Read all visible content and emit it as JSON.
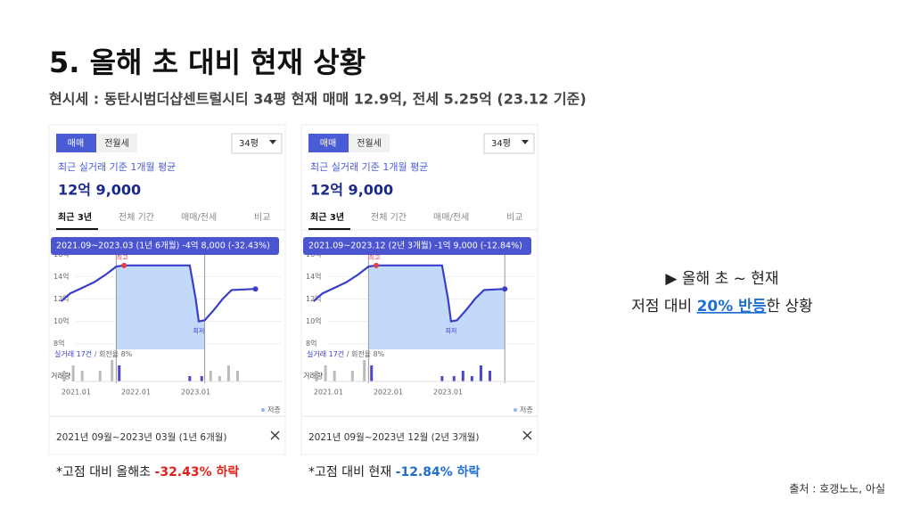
{
  "header": {
    "title": "5. 올해 초 대비 현재 상황",
    "subtitle": "현시세 : 동탄시범더샵센트럴시티 34평 현재 매매 12.9억, 전세 5.25억 (23.12 기준)"
  },
  "panels": [
    {
      "tab_sale": "매매",
      "tab_rent": "전월세",
      "size": "34평",
      "avg_label": "최근 실거래 기준 1개월 평균",
      "avg_price": "12억 9,000",
      "period_tabs": [
        "최근 3년",
        "전체 기간",
        "매매/전세",
        "비교"
      ],
      "tooltip": "2021.09~2023.03 (1년 6개월)  -4억 8,000 (-32.43%)",
      "range": [
        2021.67,
        2023.15
      ],
      "ylim": [
        7.5,
        16.5
      ],
      "yticks": [
        {
          "value": 8,
          "label": "8억"
        },
        {
          "value": 10,
          "label": "10억"
        },
        {
          "value": 12,
          "label": "12억"
        },
        {
          "value": 14,
          "label": "14억"
        },
        {
          "value": 16,
          "label": "16억"
        }
      ],
      "xlim": [
        2020.65,
        2024.2
      ],
      "xticks": [
        {
          "value": 2021,
          "label": "2021.01"
        },
        {
          "value": 2022,
          "label": "2022.01"
        },
        {
          "value": 2023,
          "label": "2023.01"
        }
      ],
      "price": {
        "x": [
          2020.75,
          2020.9,
          2021.1,
          2021.3,
          2021.5,
          2021.67,
          2021.8,
          2022.9,
          2023.0,
          2023.05,
          2023.15,
          2023.3,
          2023.45,
          2023.6,
          2024.0
        ],
        "values": [
          11.8,
          12.5,
          13.0,
          13.5,
          14.2,
          14.9,
          15.0,
          15.0,
          12.0,
          10.0,
          10.1,
          11.0,
          12.0,
          12.8,
          12.9
        ]
      },
      "high_label": "최고",
      "low_label": "최저",
      "deals": "실거래 17건",
      "turnover": " / 회전율 8%",
      "volume_label": "거래량",
      "volume": {
        "x": [
          2020.8,
          2020.95,
          2021.1,
          2021.4,
          2021.6,
          2021.72,
          2022.9,
          2023.1,
          2023.25,
          2023.4,
          2023.55,
          2023.7
        ],
        "values": [
          2,
          3,
          2,
          2,
          4,
          3,
          1,
          1,
          2,
          1,
          3,
          2
        ]
      },
      "legend": "저층",
      "period": "2021년 09월~2023년 03월 (1년 6개월)",
      "caption": "*고점 대비 올해초 ",
      "caption_highlight": "-32.43% 하락",
      "highlight_color": "#e0211a"
    },
    {
      "tab_sale": "매매",
      "tab_rent": "전월세",
      "size": "34평",
      "avg_label": "최근 실거래 기준 1개월 평균",
      "avg_price": "12억 9,000",
      "period_tabs": [
        "최근 3년",
        "전체 기간",
        "매매/전세",
        "비교"
      ],
      "tooltip": "2021.09~2023.12 (2년 3개월)  -1억 9,000 (-12.84%)",
      "range": [
        2021.67,
        2023.95
      ],
      "ylim": [
        7.5,
        16.5
      ],
      "yticks": [
        {
          "value": 8,
          "label": "8억"
        },
        {
          "value": 10,
          "label": "10억"
        },
        {
          "value": 12,
          "label": "12억"
        },
        {
          "value": 14,
          "label": "14억"
        },
        {
          "value": 16,
          "label": "16억"
        }
      ],
      "xlim": [
        2020.65,
        2024.2
      ],
      "xticks": [
        {
          "value": 2021,
          "label": "2021.01"
        },
        {
          "value": 2022,
          "label": "2022.01"
        },
        {
          "value": 2023,
          "label": "2023.01"
        }
      ],
      "price": {
        "x": [
          2020.75,
          2020.9,
          2021.1,
          2021.3,
          2021.5,
          2021.67,
          2021.8,
          2022.9,
          2023.0,
          2023.05,
          2023.15,
          2023.3,
          2023.45,
          2023.6,
          2023.95
        ],
        "values": [
          11.8,
          12.5,
          13.0,
          13.5,
          14.2,
          14.9,
          15.0,
          15.0,
          12.0,
          10.0,
          10.1,
          11.0,
          12.0,
          12.8,
          12.9
        ]
      },
      "high_label": "최고",
      "low_label": "최저",
      "deals": "실거래 17건",
      "turnover": " / 회전율 8%",
      "volume_label": "거래량",
      "volume": {
        "x": [
          2020.8,
          2020.95,
          2021.1,
          2021.4,
          2021.6,
          2021.72,
          2022.9,
          2023.1,
          2023.25,
          2023.4,
          2023.55,
          2023.7
        ],
        "values": [
          2,
          3,
          2,
          2,
          4,
          3,
          1,
          1,
          2,
          1,
          3,
          2
        ]
      },
      "legend": "저층",
      "period": "2021년 09월~2023년 12월 (2년 3개월)",
      "caption": "*고점 대비 현재 ",
      "caption_highlight": "-12.84% 하락",
      "highlight_color": "#1f6fd0"
    }
  ],
  "note": {
    "line1": "▶ 올해 초 ~ 현재",
    "line2_a": "저점 대비 ",
    "line2_b": "20% 반등",
    "line2_c": "한 상황"
  },
  "source": "출처 : 호갱노노, 아실"
}
